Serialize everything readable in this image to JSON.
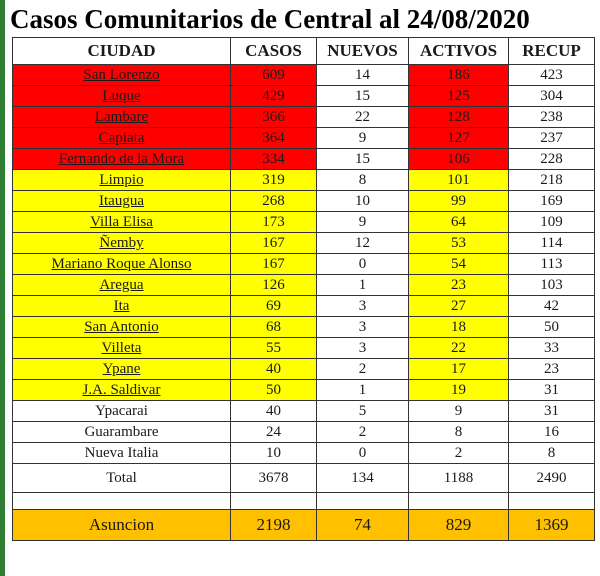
{
  "title": "Casos Comunitarios de Central al 24/08/2020",
  "headers": [
    "CIUDAD",
    "CASOS",
    "NUEVOS",
    "ACTIVOS",
    "RECUP"
  ],
  "rows": [
    {
      "ciudad": "San Lorenzo",
      "casos": "609",
      "nuevos": "14",
      "activos": "186",
      "recup": "423"
    },
    {
      "ciudad": "Luque",
      "casos": "429",
      "nuevos": "15",
      "activos": "125",
      "recup": "304"
    },
    {
      "ciudad": "Lambare",
      "casos": "366",
      "nuevos": "22",
      "activos": "128",
      "recup": "238"
    },
    {
      "ciudad": "Capiata",
      "casos": "364",
      "nuevos": "9",
      "activos": "127",
      "recup": "237"
    },
    {
      "ciudad": "Fernando de la Mora",
      "casos": "334",
      "nuevos": "15",
      "activos": "106",
      "recup": "228"
    },
    {
      "ciudad": "Limpio",
      "casos": "319",
      "nuevos": "8",
      "activos": "101",
      "recup": "218"
    },
    {
      "ciudad": "Itaugua",
      "casos": "268",
      "nuevos": "10",
      "activos": "99",
      "recup": "169"
    },
    {
      "ciudad": "Villa Elisa",
      "casos": "173",
      "nuevos": "9",
      "activos": "64",
      "recup": "109"
    },
    {
      "ciudad": "Ñemby",
      "casos": "167",
      "nuevos": "12",
      "activos": "53",
      "recup": "114"
    },
    {
      "ciudad": "Mariano Roque Alonso",
      "casos": "167",
      "nuevos": "0",
      "activos": "54",
      "recup": "113"
    },
    {
      "ciudad": "Aregua",
      "casos": "126",
      "nuevos": "1",
      "activos": "23",
      "recup": "103"
    },
    {
      "ciudad": "Ita",
      "casos": "69",
      "nuevos": "3",
      "activos": "27",
      "recup": "42"
    },
    {
      "ciudad": "San Antonio",
      "casos": "68",
      "nuevos": "3",
      "activos": "18",
      "recup": "50"
    },
    {
      "ciudad": "Villeta",
      "casos": "55",
      "nuevos": "3",
      "activos": "22",
      "recup": "33"
    },
    {
      "ciudad": "Ypane",
      "casos": "40",
      "nuevos": "2",
      "activos": "17",
      "recup": "23"
    },
    {
      "ciudad": "J.A. Saldivar",
      "casos": "50",
      "nuevos": "1",
      "activos": "19",
      "recup": "31"
    },
    {
      "ciudad": "Ypacarai",
      "casos": "40",
      "nuevos": "5",
      "activos": "9",
      "recup": "31"
    },
    {
      "ciudad": "Guarambare",
      "casos": "24",
      "nuevos": "2",
      "activos": "8",
      "recup": "16"
    },
    {
      "ciudad": "Nueva Italia",
      "casos": "10",
      "nuevos": "0",
      "activos": "2",
      "recup": "8"
    }
  ],
  "total": {
    "label": "Total",
    "casos": "3678",
    "nuevos": "134",
    "activos": "1188",
    "recup": "2490"
  },
  "asuncion": {
    "label": "Asuncion",
    "casos": "2198",
    "nuevos": "74",
    "activos": "829",
    "recup": "1369"
  },
  "colors": {
    "red_zone": "#ff0000",
    "yellow_zone": "#ffff00",
    "asuncion_row": "#ffc000"
  }
}
